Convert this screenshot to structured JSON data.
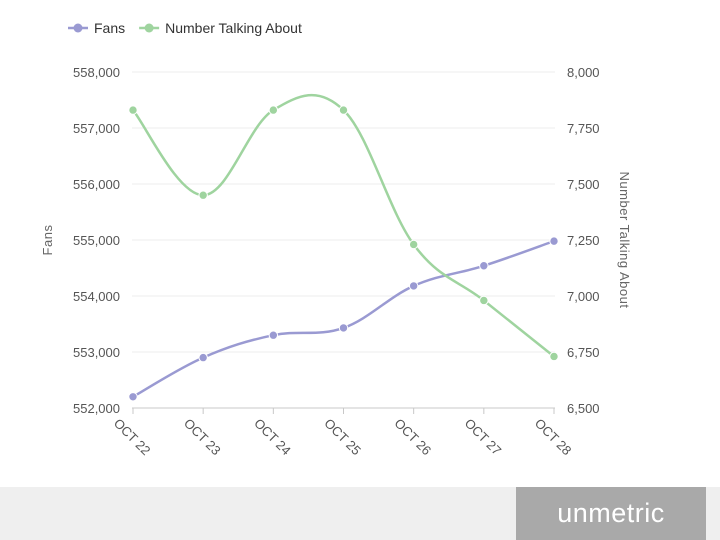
{
  "chart_data": {
    "type": "line",
    "categories": [
      "OCT 22",
      "OCT 23",
      "OCT 24",
      "OCT 25",
      "OCT 26",
      "OCT 27",
      "OCT 28"
    ],
    "series": [
      {
        "name": "Fans",
        "axis": "left",
        "color": "#9a9ad2",
        "values": [
          552200,
          552900,
          553300,
          553430,
          554180,
          554540,
          554980
        ]
      },
      {
        "name": "Number Talking About",
        "axis": "right",
        "color": "#9fd49f",
        "values": [
          7830,
          7450,
          7830,
          7830,
          7230,
          6980,
          6730
        ]
      }
    ],
    "ylabel": "Fans",
    "y2label": "Number Talking About",
    "ylim": [
      552000,
      558000
    ],
    "y2lim": [
      6500,
      8000
    ],
    "yticks": [
      "552,000",
      "553,000",
      "554,000",
      "555,000",
      "556,000",
      "557,000",
      "558,000"
    ],
    "y2ticks": [
      "6,500",
      "6,750",
      "7,000",
      "7,250",
      "7,500",
      "7,750",
      "8,000"
    ],
    "ytick_values": [
      552000,
      553000,
      554000,
      555000,
      556000,
      557000,
      558000
    ],
    "y2tick_values": [
      6500,
      6750,
      7000,
      7250,
      7500,
      7750,
      8000
    ],
    "legend_position": "top-left",
    "grid": true
  },
  "footer": {
    "brand": "unmetric"
  }
}
